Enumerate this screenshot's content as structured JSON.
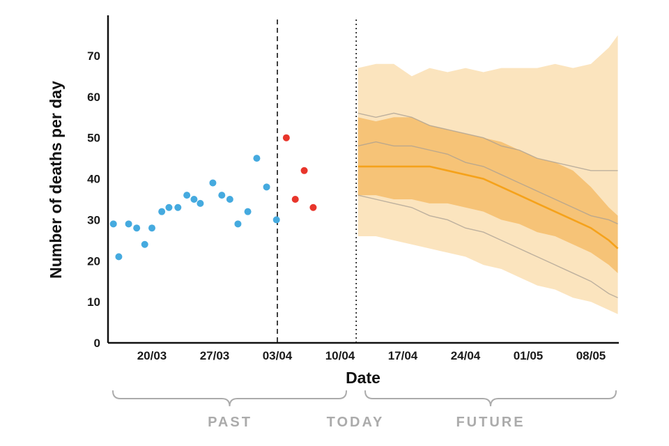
{
  "chart_data": {
    "type": "scatter",
    "title": "",
    "xlabel": "Date",
    "ylabel": "Number of deaths per day",
    "ylim": [
      0,
      78
    ],
    "yticks": [
      0,
      10,
      20,
      30,
      40,
      50,
      60,
      70
    ],
    "xticks": [
      {
        "label": "20/03",
        "day": 0
      },
      {
        "label": "27/03",
        "day": 7
      },
      {
        "label": "03/04",
        "day": 14
      },
      {
        "label": "10/04",
        "day": 21
      },
      {
        "label": "17/04",
        "day": 28
      },
      {
        "label": "24/04",
        "day": 35
      },
      {
        "label": "01/05",
        "day": 42
      },
      {
        "label": "08/05",
        "day": 49
      }
    ],
    "series": [
      {
        "name": "observed-past",
        "type": "scatter",
        "color": "#45AADF",
        "points": [
          [
            -4.3,
            29
          ],
          [
            -3.7,
            21
          ],
          [
            -2.6,
            29
          ],
          [
            -1.7,
            28
          ],
          [
            -0.8,
            24
          ],
          [
            0,
            28
          ],
          [
            1.1,
            32
          ],
          [
            1.9,
            33
          ],
          [
            2.9,
            33
          ],
          [
            3.9,
            36
          ],
          [
            4.7,
            35
          ],
          [
            5.4,
            34
          ],
          [
            6.8,
            39
          ],
          [
            7.8,
            36
          ],
          [
            8.7,
            35
          ],
          [
            9.6,
            29
          ],
          [
            10.7,
            32
          ],
          [
            11.7,
            45
          ],
          [
            12.8,
            38
          ],
          [
            13.9,
            30
          ]
        ]
      },
      {
        "name": "observed-recent",
        "type": "scatter",
        "color": "#E8352B",
        "points": [
          [
            15,
            50
          ],
          [
            16,
            35
          ],
          [
            17,
            42
          ],
          [
            18,
            33
          ]
        ]
      }
    ],
    "forecast": {
      "days": [
        23,
        25,
        27,
        29,
        31,
        33,
        35,
        37,
        39,
        41,
        43,
        45,
        47,
        49,
        51,
        52
      ],
      "outer_upper": [
        67,
        68,
        68,
        65,
        67,
        66,
        67,
        66,
        67,
        67,
        67,
        68,
        67,
        68,
        72,
        75
      ],
      "inner_upper": [
        55,
        54,
        55,
        55,
        53,
        52,
        51,
        50,
        49,
        47,
        45,
        44,
        42,
        38,
        33,
        31
      ],
      "median": [
        43,
        43,
        43,
        43,
        43,
        42,
        41,
        40,
        38,
        36,
        34,
        32,
        30,
        28,
        25,
        23
      ],
      "inner_lower": [
        36,
        36,
        35,
        35,
        34,
        34,
        33,
        32,
        30,
        29,
        27,
        26,
        24,
        22,
        19,
        17
      ],
      "outer_lower": [
        26,
        26,
        25,
        24,
        23,
        22,
        21,
        19,
        18,
        16,
        14,
        13,
        11,
        10,
        8,
        7
      ],
      "samples": [
        [
          56,
          55,
          56,
          55,
          53,
          52,
          51,
          50,
          48,
          47,
          45,
          44,
          43,
          42,
          42,
          42
        ],
        [
          48,
          49,
          48,
          48,
          47,
          46,
          44,
          43,
          41,
          39,
          37,
          35,
          33,
          31,
          30,
          29
        ],
        [
          36,
          35,
          34,
          33,
          31,
          30,
          28,
          27,
          25,
          23,
          21,
          19,
          17,
          15,
          12,
          11
        ]
      ],
      "colors": {
        "outer_band": "#FBE4BE",
        "inner_band": "#F6C377",
        "median": "#F5A21B",
        "samples": "#A89F93"
      }
    },
    "vlines": [
      {
        "day": 14,
        "style": "dashed",
        "color": "#111111",
        "name": "forecast-start-line"
      },
      {
        "day": 22.8,
        "style": "dotted",
        "color": "#111111",
        "name": "today-line"
      }
    ],
    "annotations": {
      "past": "PAST",
      "today": "TODAY",
      "future": "FUTURE"
    },
    "axis_color": "#111111",
    "brace_color": "#ABABAB",
    "legend_position": "none",
    "grid": false
  }
}
